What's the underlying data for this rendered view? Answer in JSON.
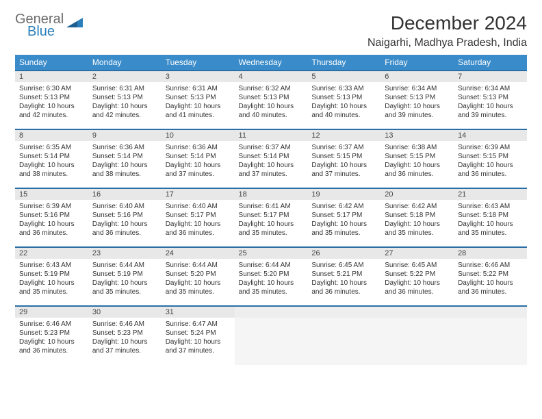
{
  "logo": {
    "line1": "General",
    "line2": "Blue"
  },
  "title": "December 2024",
  "location": "Naigarhi, Madhya Pradesh, India",
  "colors": {
    "header_bg": "#3a8bc9",
    "header_rule": "#2a6ea6",
    "daynum_bg": "#e8e8e8",
    "text": "#333333",
    "logo_gray": "#6b6b6b",
    "logo_blue": "#2a7fba",
    "page_bg": "#ffffff"
  },
  "typography": {
    "title_fontsize": 28,
    "location_fontsize": 16,
    "dow_fontsize": 12,
    "daynum_fontsize": 11,
    "body_fontsize": 10
  },
  "days_of_week": [
    "Sunday",
    "Monday",
    "Tuesday",
    "Wednesday",
    "Thursday",
    "Friday",
    "Saturday"
  ],
  "cells": [
    {
      "n": "1",
      "sr": "6:30 AM",
      "ss": "5:13 PM",
      "dl": "10 hours and 42 minutes."
    },
    {
      "n": "2",
      "sr": "6:31 AM",
      "ss": "5:13 PM",
      "dl": "10 hours and 42 minutes."
    },
    {
      "n": "3",
      "sr": "6:31 AM",
      "ss": "5:13 PM",
      "dl": "10 hours and 41 minutes."
    },
    {
      "n": "4",
      "sr": "6:32 AM",
      "ss": "5:13 PM",
      "dl": "10 hours and 40 minutes."
    },
    {
      "n": "5",
      "sr": "6:33 AM",
      "ss": "5:13 PM",
      "dl": "10 hours and 40 minutes."
    },
    {
      "n": "6",
      "sr": "6:34 AM",
      "ss": "5:13 PM",
      "dl": "10 hours and 39 minutes."
    },
    {
      "n": "7",
      "sr": "6:34 AM",
      "ss": "5:13 PM",
      "dl": "10 hours and 39 minutes."
    },
    {
      "n": "8",
      "sr": "6:35 AM",
      "ss": "5:14 PM",
      "dl": "10 hours and 38 minutes."
    },
    {
      "n": "9",
      "sr": "6:36 AM",
      "ss": "5:14 PM",
      "dl": "10 hours and 38 minutes."
    },
    {
      "n": "10",
      "sr": "6:36 AM",
      "ss": "5:14 PM",
      "dl": "10 hours and 37 minutes."
    },
    {
      "n": "11",
      "sr": "6:37 AM",
      "ss": "5:14 PM",
      "dl": "10 hours and 37 minutes."
    },
    {
      "n": "12",
      "sr": "6:37 AM",
      "ss": "5:15 PM",
      "dl": "10 hours and 37 minutes."
    },
    {
      "n": "13",
      "sr": "6:38 AM",
      "ss": "5:15 PM",
      "dl": "10 hours and 36 minutes."
    },
    {
      "n": "14",
      "sr": "6:39 AM",
      "ss": "5:15 PM",
      "dl": "10 hours and 36 minutes."
    },
    {
      "n": "15",
      "sr": "6:39 AM",
      "ss": "5:16 PM",
      "dl": "10 hours and 36 minutes."
    },
    {
      "n": "16",
      "sr": "6:40 AM",
      "ss": "5:16 PM",
      "dl": "10 hours and 36 minutes."
    },
    {
      "n": "17",
      "sr": "6:40 AM",
      "ss": "5:17 PM",
      "dl": "10 hours and 36 minutes."
    },
    {
      "n": "18",
      "sr": "6:41 AM",
      "ss": "5:17 PM",
      "dl": "10 hours and 35 minutes."
    },
    {
      "n": "19",
      "sr": "6:42 AM",
      "ss": "5:17 PM",
      "dl": "10 hours and 35 minutes."
    },
    {
      "n": "20",
      "sr": "6:42 AM",
      "ss": "5:18 PM",
      "dl": "10 hours and 35 minutes."
    },
    {
      "n": "21",
      "sr": "6:43 AM",
      "ss": "5:18 PM",
      "dl": "10 hours and 35 minutes."
    },
    {
      "n": "22",
      "sr": "6:43 AM",
      "ss": "5:19 PM",
      "dl": "10 hours and 35 minutes."
    },
    {
      "n": "23",
      "sr": "6:44 AM",
      "ss": "5:19 PM",
      "dl": "10 hours and 35 minutes."
    },
    {
      "n": "24",
      "sr": "6:44 AM",
      "ss": "5:20 PM",
      "dl": "10 hours and 35 minutes."
    },
    {
      "n": "25",
      "sr": "6:44 AM",
      "ss": "5:20 PM",
      "dl": "10 hours and 35 minutes."
    },
    {
      "n": "26",
      "sr": "6:45 AM",
      "ss": "5:21 PM",
      "dl": "10 hours and 36 minutes."
    },
    {
      "n": "27",
      "sr": "6:45 AM",
      "ss": "5:22 PM",
      "dl": "10 hours and 36 minutes."
    },
    {
      "n": "28",
      "sr": "6:46 AM",
      "ss": "5:22 PM",
      "dl": "10 hours and 36 minutes."
    },
    {
      "n": "29",
      "sr": "6:46 AM",
      "ss": "5:23 PM",
      "dl": "10 hours and 36 minutes."
    },
    {
      "n": "30",
      "sr": "6:46 AM",
      "ss": "5:23 PM",
      "dl": "10 hours and 37 minutes."
    },
    {
      "n": "31",
      "sr": "6:47 AM",
      "ss": "5:24 PM",
      "dl": "10 hours and 37 minutes."
    }
  ],
  "labels": {
    "sunrise": "Sunrise:",
    "sunset": "Sunset:",
    "daylight": "Daylight:"
  }
}
